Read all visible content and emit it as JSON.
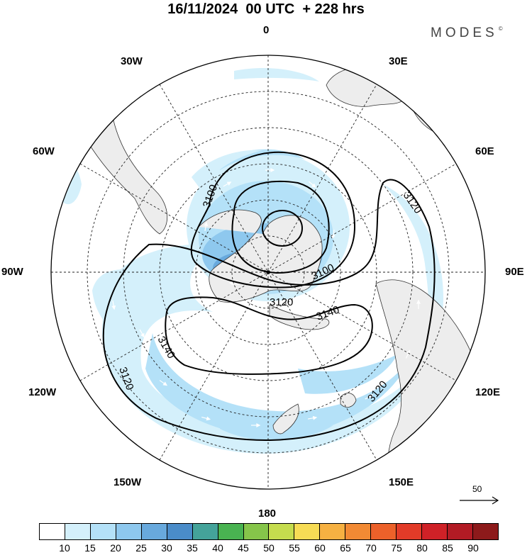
{
  "title": "16/11/2024  00 UTC  + 228 hrs",
  "brand": "MODES",
  "brand_mark": "©",
  "longitude_labels": {
    "lon_0": "0",
    "lon_30e": "30E",
    "lon_60e": "60E",
    "lon_90e": "90E",
    "lon_120e": "120E",
    "lon_150e": "150E",
    "lon_180": "180",
    "lon_150w": "150W",
    "lon_120w": "120W",
    "lon_90w": "90W",
    "lon_60w": "60W",
    "lon_30w": "30W"
  },
  "contour_labels": {
    "c3100a": "3100",
    "c3100b": "3100",
    "c3120a": "3120",
    "c3120b": "3120",
    "c3120c": "3120",
    "c3140a": "3140",
    "c3140b": "3140"
  },
  "reference_vector": "50",
  "colorbar": {
    "colors": [
      "#ffffff",
      "#d4f0fb",
      "#b4e1f8",
      "#8ec8ee",
      "#68a9dd",
      "#4a8cc9",
      "#44a39a",
      "#49b351",
      "#86c54a",
      "#c5dc4e",
      "#f7dc55",
      "#f6b142",
      "#f28a34",
      "#ec612a",
      "#e23b28",
      "#cf2127",
      "#b21b24",
      "#8d1a1b"
    ],
    "tick_labels": [
      "10",
      "15",
      "20",
      "25",
      "30",
      "35",
      "40",
      "45",
      "50",
      "55",
      "60",
      "65",
      "70",
      "75",
      "80",
      "85",
      "90"
    ]
  }
}
